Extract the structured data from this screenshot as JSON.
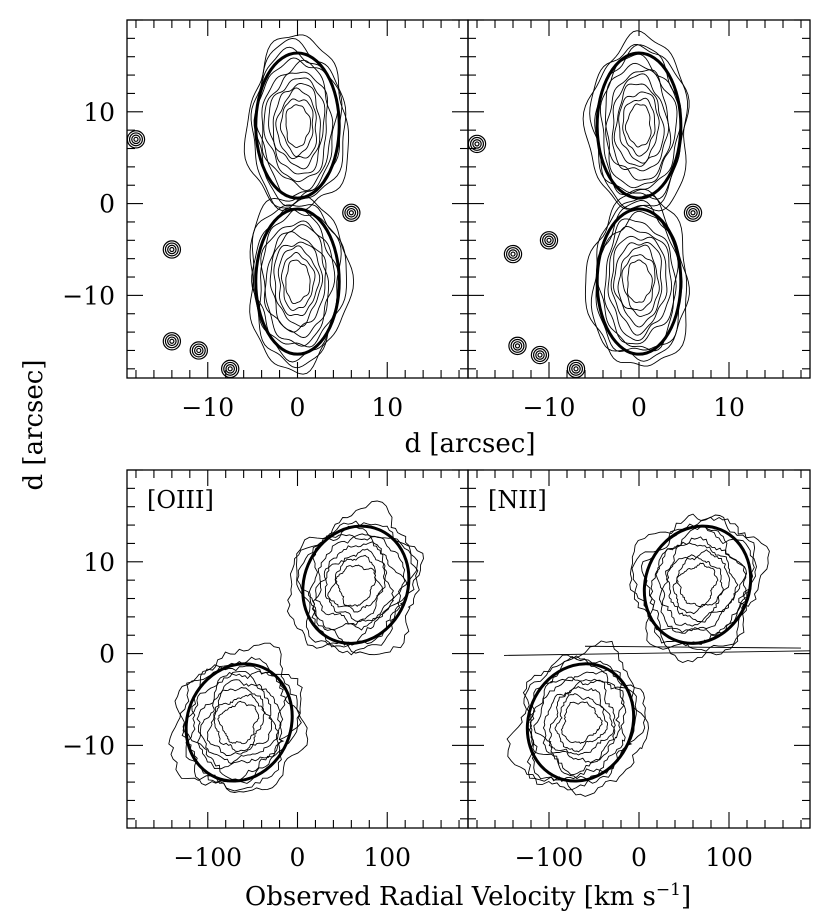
{
  "figure": {
    "y_axis_title": "d [arcsec]",
    "x_axis_title_top": "d [arcsec]",
    "x_axis_title_bottom": "Observed Radial Velocity [km s",
    "x_axis_title_bottom_sup": "−1",
    "x_axis_title_bottom_end": "]"
  },
  "chart_data": [
    {
      "type": "contour",
      "panel": "top-left",
      "label": "",
      "xlim": [
        -19,
        19
      ],
      "ylim": [
        -19,
        20
      ],
      "xticks_labeled": [
        -10,
        0,
        10
      ],
      "yticks_labeled": [
        -10,
        0,
        10
      ],
      "model_lobes": [
        {
          "cx": 0,
          "cy": 8.5,
          "rx": 5,
          "ry": 8.5
        },
        {
          "cx": 0,
          "cy": -8.5,
          "rx": 5,
          "ry": 8.5
        }
      ],
      "compact_sources": [
        [
          -18,
          7
        ],
        [
          6,
          -1
        ],
        [
          -7.5,
          -18
        ],
        [
          -14,
          -15
        ],
        [
          -11,
          -16
        ],
        [
          -14,
          -5
        ]
      ]
    },
    {
      "type": "contour",
      "panel": "top-right",
      "label": "",
      "xlim": [
        -19,
        19
      ],
      "ylim": [
        -19,
        20
      ],
      "xticks_labeled": [
        -10,
        0,
        10
      ],
      "yticks_labeled": [
        -10,
        0,
        10
      ],
      "model_lobes": [
        {
          "cx": 0,
          "cy": 8.5,
          "rx": 5,
          "ry": 8.5
        },
        {
          "cx": 0,
          "cy": -8.5,
          "rx": 5,
          "ry": 8.5
        }
      ],
      "compact_sources": [
        [
          -18,
          6.5
        ],
        [
          6,
          -1
        ],
        [
          -7,
          -18
        ],
        [
          -11,
          -16.5
        ],
        [
          -13.5,
          -15.5
        ],
        [
          -14,
          -5.5
        ],
        [
          -10,
          -4
        ]
      ]
    },
    {
      "type": "contour",
      "panel": "bottom-left",
      "label": "[OIII]",
      "xlim": [
        -190,
        190
      ],
      "ylim": [
        -19,
        20
      ],
      "xticks_labeled": [
        -100,
        0,
        100
      ],
      "yticks_labeled": [
        -10,
        0,
        10
      ],
      "model_lobes": [
        {
          "cx": 65,
          "cy": 7.5,
          "rx": 62,
          "ry": 7,
          "angle": -23
        },
        {
          "cx": -65,
          "cy": -7.5,
          "rx": 62,
          "ry": 7,
          "angle": -23
        }
      ]
    },
    {
      "type": "contour",
      "panel": "bottom-right",
      "label": "[NII]",
      "xlim": [
        -190,
        190
      ],
      "ylim": [
        -19,
        20
      ],
      "xticks_labeled": [
        -100,
        0,
        100
      ],
      "yticks_labeled": [
        -10,
        0,
        10
      ],
      "model_lobes": [
        {
          "cx": 65,
          "cy": 7.5,
          "rx": 62,
          "ry": 7,
          "angle": -23
        },
        {
          "cx": -65,
          "cy": -7.5,
          "rx": 62,
          "ry": 7,
          "angle": -23
        }
      ]
    }
  ]
}
